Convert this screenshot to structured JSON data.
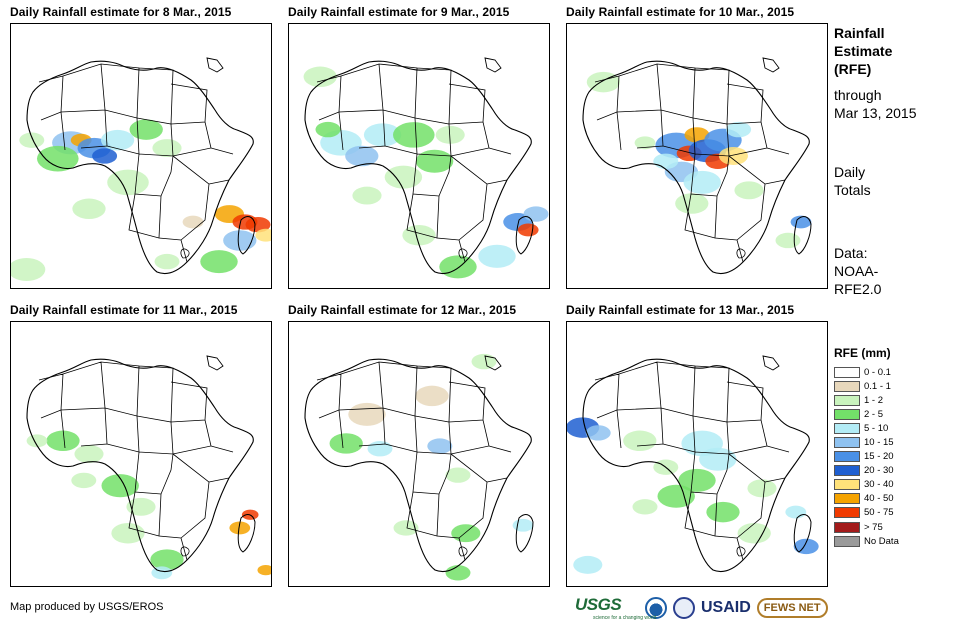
{
  "panels": [
    {
      "title": "Daily Rainfall estimate for 8 Mar., 2015",
      "rain": [
        {
          "x": 23,
          "y": 45,
          "r": 9,
          "lvl": 5
        },
        {
          "x": 27,
          "y": 44,
          "r": 5,
          "lvl": 9
        },
        {
          "x": 32,
          "y": 47,
          "r": 8,
          "lvl": 6
        },
        {
          "x": 36,
          "y": 50,
          "r": 6,
          "lvl": 7
        },
        {
          "x": 41,
          "y": 44,
          "r": 8,
          "lvl": 4
        },
        {
          "x": 18,
          "y": 51,
          "r": 10,
          "lvl": 3
        },
        {
          "x": 52,
          "y": 40,
          "r": 8,
          "lvl": 3
        },
        {
          "x": 60,
          "y": 47,
          "r": 7,
          "lvl": 2
        },
        {
          "x": 45,
          "y": 60,
          "r": 10,
          "lvl": 2
        },
        {
          "x": 30,
          "y": 70,
          "r": 8,
          "lvl": 2
        },
        {
          "x": 84,
          "y": 72,
          "r": 7,
          "lvl": 9
        },
        {
          "x": 90,
          "y": 75,
          "r": 6,
          "lvl": 10
        },
        {
          "x": 95,
          "y": 76,
          "r": 6,
          "lvl": 10
        },
        {
          "x": 98,
          "y": 80,
          "r": 5,
          "lvl": 8
        },
        {
          "x": 88,
          "y": 82,
          "r": 8,
          "lvl": 5
        },
        {
          "x": 80,
          "y": 90,
          "r": 9,
          "lvl": 3
        },
        {
          "x": 60,
          "y": 90,
          "r": 6,
          "lvl": 2
        },
        {
          "x": 6,
          "y": 93,
          "r": 9,
          "lvl": 2
        },
        {
          "x": 70,
          "y": 75,
          "r": 5,
          "lvl": 1
        },
        {
          "x": 8,
          "y": 44,
          "r": 6,
          "lvl": 2
        }
      ]
    },
    {
      "title": "Daily Rainfall estimate for 9 Mar., 2015",
      "rain": [
        {
          "x": 12,
          "y": 20,
          "r": 8,
          "lvl": 2
        },
        {
          "x": 20,
          "y": 45,
          "r": 10,
          "lvl": 4
        },
        {
          "x": 28,
          "y": 50,
          "r": 8,
          "lvl": 5
        },
        {
          "x": 36,
          "y": 42,
          "r": 9,
          "lvl": 4
        },
        {
          "x": 48,
          "y": 42,
          "r": 10,
          "lvl": 3
        },
        {
          "x": 56,
          "y": 52,
          "r": 9,
          "lvl": 3
        },
        {
          "x": 44,
          "y": 58,
          "r": 9,
          "lvl": 2
        },
        {
          "x": 30,
          "y": 65,
          "r": 7,
          "lvl": 2
        },
        {
          "x": 88,
          "y": 75,
          "r": 7,
          "lvl": 6
        },
        {
          "x": 92,
          "y": 78,
          "r": 5,
          "lvl": 10
        },
        {
          "x": 95,
          "y": 72,
          "r": 6,
          "lvl": 5
        },
        {
          "x": 80,
          "y": 88,
          "r": 9,
          "lvl": 4
        },
        {
          "x": 50,
          "y": 80,
          "r": 8,
          "lvl": 2
        },
        {
          "x": 65,
          "y": 92,
          "r": 9,
          "lvl": 3
        },
        {
          "x": 15,
          "y": 40,
          "r": 6,
          "lvl": 3
        },
        {
          "x": 62,
          "y": 42,
          "r": 7,
          "lvl": 2
        }
      ]
    },
    {
      "title": "Daily Rainfall estimate for 10 Mar., 2015",
      "rain": [
        {
          "x": 14,
          "y": 22,
          "r": 8,
          "lvl": 2
        },
        {
          "x": 42,
          "y": 46,
          "r": 10,
          "lvl": 6
        },
        {
          "x": 47,
          "y": 49,
          "r": 6,
          "lvl": 10
        },
        {
          "x": 50,
          "y": 42,
          "r": 6,
          "lvl": 9
        },
        {
          "x": 54,
          "y": 48,
          "r": 9,
          "lvl": 7
        },
        {
          "x": 58,
          "y": 52,
          "r": 6,
          "lvl": 10
        },
        {
          "x": 60,
          "y": 44,
          "r": 9,
          "lvl": 6
        },
        {
          "x": 64,
          "y": 50,
          "r": 7,
          "lvl": 8
        },
        {
          "x": 44,
          "y": 56,
          "r": 8,
          "lvl": 5
        },
        {
          "x": 52,
          "y": 60,
          "r": 9,
          "lvl": 4
        },
        {
          "x": 38,
          "y": 52,
          "r": 6,
          "lvl": 4
        },
        {
          "x": 66,
          "y": 40,
          "r": 6,
          "lvl": 4
        },
        {
          "x": 48,
          "y": 68,
          "r": 8,
          "lvl": 2
        },
        {
          "x": 90,
          "y": 75,
          "r": 5,
          "lvl": 6
        },
        {
          "x": 85,
          "y": 82,
          "r": 6,
          "lvl": 2
        },
        {
          "x": 70,
          "y": 63,
          "r": 7,
          "lvl": 2
        },
        {
          "x": 30,
          "y": 45,
          "r": 5,
          "lvl": 2
        }
      ]
    },
    {
      "title": "Daily Rainfall estimate for 11 Mar., 2015",
      "rain": [
        {
          "x": 20,
          "y": 45,
          "r": 8,
          "lvl": 3
        },
        {
          "x": 30,
          "y": 50,
          "r": 7,
          "lvl": 2
        },
        {
          "x": 42,
          "y": 62,
          "r": 9,
          "lvl": 3
        },
        {
          "x": 50,
          "y": 70,
          "r": 7,
          "lvl": 2
        },
        {
          "x": 45,
          "y": 80,
          "r": 8,
          "lvl": 2
        },
        {
          "x": 60,
          "y": 90,
          "r": 8,
          "lvl": 3
        },
        {
          "x": 58,
          "y": 95,
          "r": 5,
          "lvl": 4
        },
        {
          "x": 88,
          "y": 78,
          "r": 5,
          "lvl": 9
        },
        {
          "x": 92,
          "y": 73,
          "r": 4,
          "lvl": 10
        },
        {
          "x": 98,
          "y": 94,
          "r": 4,
          "lvl": 9
        },
        {
          "x": 28,
          "y": 60,
          "r": 6,
          "lvl": 2
        },
        {
          "x": 10,
          "y": 45,
          "r": 5,
          "lvl": 2
        }
      ]
    },
    {
      "title": "Daily Rainfall estimate for 12 Mar., 2015",
      "rain": [
        {
          "x": 30,
          "y": 35,
          "r": 9,
          "lvl": 1
        },
        {
          "x": 55,
          "y": 28,
          "r": 8,
          "lvl": 1
        },
        {
          "x": 75,
          "y": 15,
          "r": 6,
          "lvl": 2
        },
        {
          "x": 22,
          "y": 46,
          "r": 8,
          "lvl": 3
        },
        {
          "x": 35,
          "y": 48,
          "r": 6,
          "lvl": 4
        },
        {
          "x": 58,
          "y": 47,
          "r": 6,
          "lvl": 5
        },
        {
          "x": 65,
          "y": 58,
          "r": 6,
          "lvl": 2
        },
        {
          "x": 68,
          "y": 80,
          "r": 7,
          "lvl": 3
        },
        {
          "x": 65,
          "y": 95,
          "r": 6,
          "lvl": 3
        },
        {
          "x": 90,
          "y": 77,
          "r": 5,
          "lvl": 4
        },
        {
          "x": 45,
          "y": 78,
          "r": 6,
          "lvl": 2
        }
      ]
    },
    {
      "title": "Daily Rainfall estimate for 13 Mar., 2015",
      "rain": [
        {
          "x": 6,
          "y": 40,
          "r": 8,
          "lvl": 7
        },
        {
          "x": 12,
          "y": 42,
          "r": 6,
          "lvl": 5
        },
        {
          "x": 28,
          "y": 45,
          "r": 8,
          "lvl": 2
        },
        {
          "x": 52,
          "y": 46,
          "r": 10,
          "lvl": 4
        },
        {
          "x": 58,
          "y": 52,
          "r": 9,
          "lvl": 4
        },
        {
          "x": 50,
          "y": 60,
          "r": 9,
          "lvl": 3
        },
        {
          "x": 42,
          "y": 66,
          "r": 9,
          "lvl": 3
        },
        {
          "x": 60,
          "y": 72,
          "r": 8,
          "lvl": 3
        },
        {
          "x": 72,
          "y": 80,
          "r": 8,
          "lvl": 2
        },
        {
          "x": 92,
          "y": 85,
          "r": 6,
          "lvl": 6
        },
        {
          "x": 88,
          "y": 72,
          "r": 5,
          "lvl": 4
        },
        {
          "x": 30,
          "y": 70,
          "r": 6,
          "lvl": 2
        },
        {
          "x": 8,
          "y": 92,
          "r": 7,
          "lvl": 4
        },
        {
          "x": 75,
          "y": 63,
          "r": 7,
          "lvl": 2
        },
        {
          "x": 38,
          "y": 55,
          "r": 6,
          "lvl": 2
        }
      ]
    }
  ],
  "side": {
    "title_line1": "Rainfall",
    "title_line2": "Estimate",
    "title_line3": "(RFE)",
    "through": "through",
    "date": "Mar 13, 2015",
    "totals_line1": "Daily",
    "totals_line2": "Totals",
    "data_line1": "Data:",
    "data_line2": "NOAA-",
    "data_line3": "RFE2.0"
  },
  "legend": {
    "title": "RFE (mm)",
    "items": [
      {
        "label": "0 - 0.1",
        "color": "#ffffff"
      },
      {
        "label": "0.1 - 1",
        "color": "#e8d8bc"
      },
      {
        "label": "1 - 2",
        "color": "#c9f3bd"
      },
      {
        "label": "2 - 5",
        "color": "#73e069"
      },
      {
        "label": "5 - 10",
        "color": "#b3ecf6"
      },
      {
        "label": "10 - 15",
        "color": "#8fc2f0"
      },
      {
        "label": "15 - 20",
        "color": "#4a90e6"
      },
      {
        "label": "20 - 30",
        "color": "#1f5fd1"
      },
      {
        "label": "30 - 40",
        "color": "#ffe27a"
      },
      {
        "label": "40 - 50",
        "color": "#f5a300"
      },
      {
        "label": "50 - 75",
        "color": "#f03a00"
      },
      {
        "label": "> 75",
        "color": "#a31b1b"
      },
      {
        "label": "No Data",
        "color": "#9a9a9a"
      }
    ]
  },
  "credit": "Map produced by USGS/EROS",
  "logos": {
    "usgs": "USGS",
    "usgs_tagline": "science for a changing world",
    "usaid": "USAID",
    "fews": "FEWS NET"
  }
}
